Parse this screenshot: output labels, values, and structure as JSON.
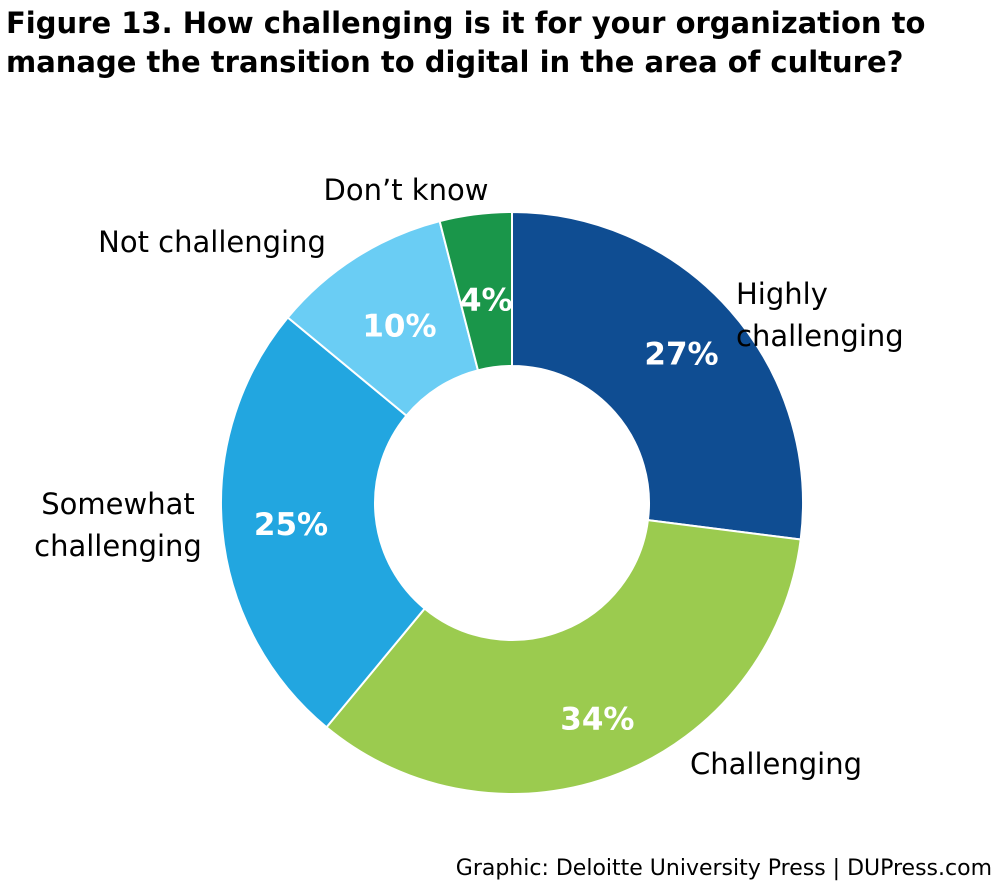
{
  "title": "Figure 13. How challenging is it for your organization to manage the transition to digital in the area of culture?",
  "credit": "Graphic: Deloitte University Press  |  DUPress.com",
  "chart_data": {
    "type": "pie",
    "title": "Figure 13. How challenging is it for your organization to manage the transition to digital in the area of culture?",
    "donut": true,
    "slices": [
      {
        "label": "Highly challenging",
        "value": 27,
        "value_label": "27%",
        "color": "#0f4d92"
      },
      {
        "label": "Challenging",
        "value": 34,
        "value_label": "34%",
        "color": "#9bcb4f"
      },
      {
        "label": "Somewhat challenging",
        "value": 25,
        "value_label": "25%",
        "color": "#22a6e0"
      },
      {
        "label": "Not challenging",
        "value": 10,
        "value_label": "10%",
        "color": "#6acdf4"
      },
      {
        "label": "Don’t know",
        "value": 4,
        "value_label": "4%",
        "color": "#1a964a"
      }
    ]
  }
}
